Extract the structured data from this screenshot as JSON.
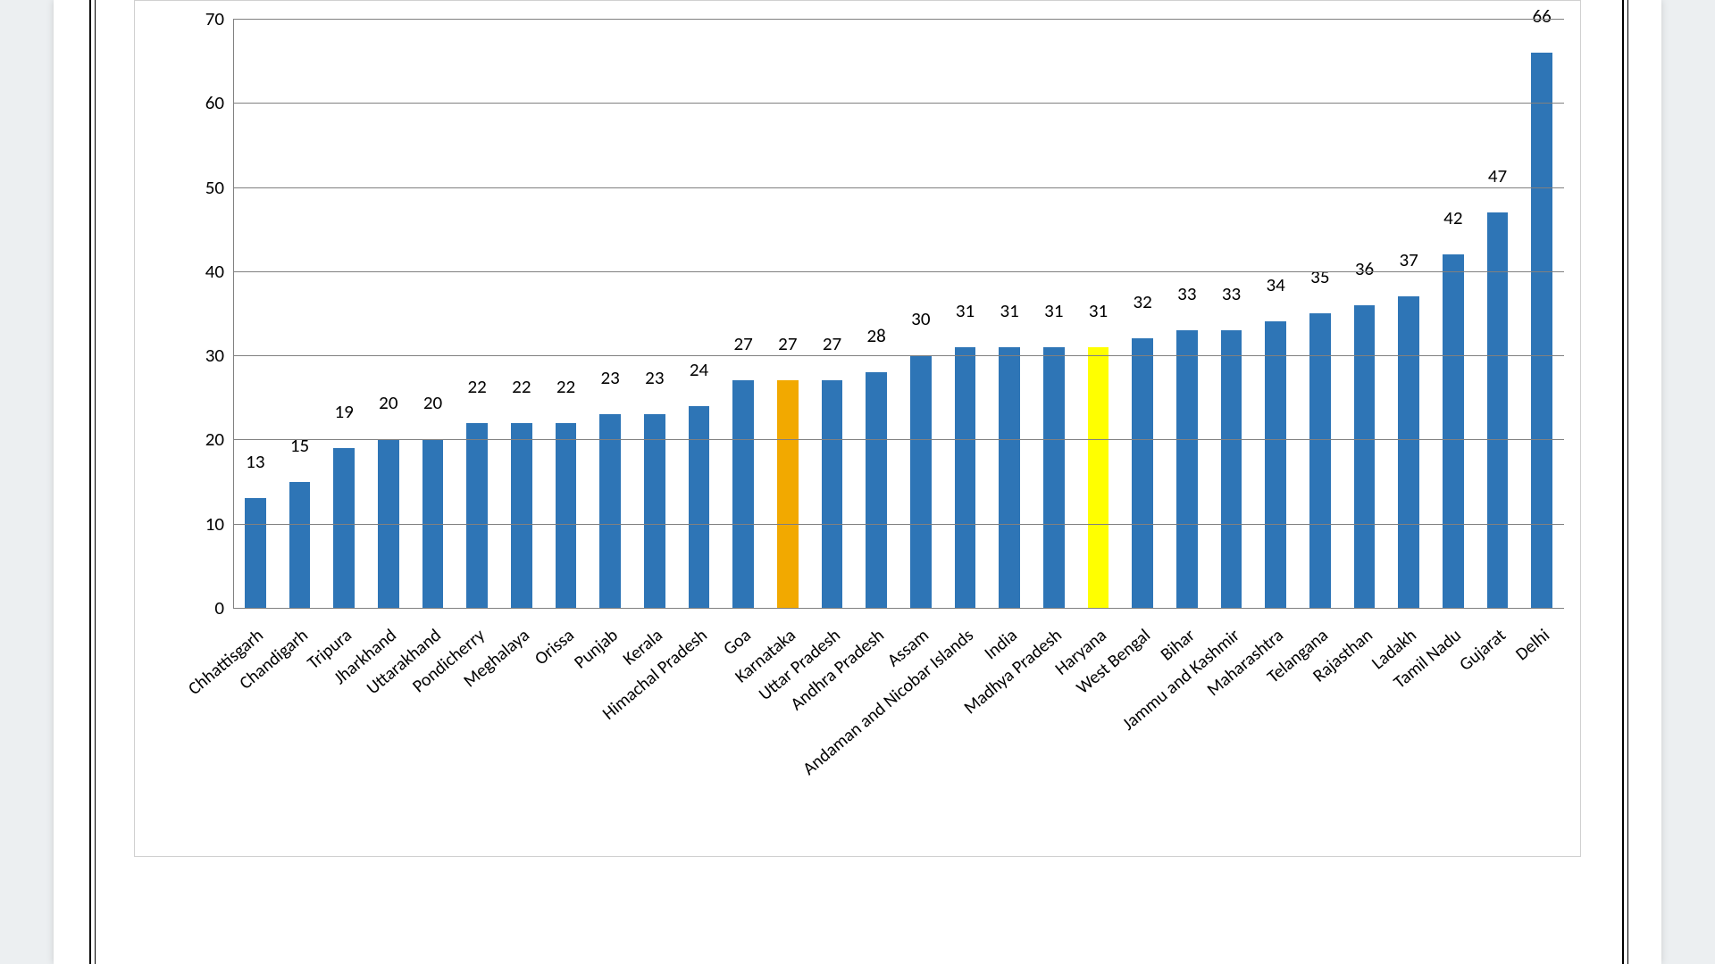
{
  "chart": {
    "type": "bar",
    "categories": [
      "Chhattisgarh",
      "Chandigarh",
      "Tripura",
      "Jharkhand",
      "Uttarakhand",
      "Pondicherry",
      "Meghalaya",
      "Orissa",
      "Punjab",
      "Kerala",
      "Himachal Pradesh",
      "Goa",
      "Karnataka",
      "Uttar Pradesh",
      "Andhra Pradesh",
      "Assam",
      "Andaman and Nicobar Islands",
      "India",
      "Madhya Pradesh",
      "Haryana",
      "West Bengal",
      "Bihar",
      "Jammu and Kashmir",
      "Maharashtra",
      "Telangana",
      "Rajasthan",
      "Ladakh",
      "Tamil Nadu",
      "Gujarat",
      "Delhi"
    ],
    "values": [
      13,
      15,
      19,
      20,
      20,
      22,
      22,
      22,
      23,
      23,
      24,
      27,
      27,
      27,
      28,
      30,
      31,
      31,
      31,
      31,
      32,
      33,
      33,
      34,
      35,
      36,
      37,
      42,
      47,
      66
    ],
    "bar_colors": [
      "#2e75b6",
      "#2e75b6",
      "#2e75b6",
      "#2e75b6",
      "#2e75b6",
      "#2e75b6",
      "#2e75b6",
      "#2e75b6",
      "#2e75b6",
      "#2e75b6",
      "#2e75b6",
      "#2e75b6",
      "#f2a900",
      "#2e75b6",
      "#2e75b6",
      "#2e75b6",
      "#2e75b6",
      "#2e75b6",
      "#2e75b6",
      "#ffff00",
      "#2e75b6",
      "#2e75b6",
      "#2e75b6",
      "#2e75b6",
      "#2e75b6",
      "#2e75b6",
      "#2e75b6",
      "#2e75b6",
      "#2e75b6",
      "#2e75b6"
    ],
    "ylim": [
      0,
      70
    ],
    "ytick_step": 10,
    "grid_color": "#808080",
    "axis_color": "#808080",
    "background_color": "#ffffff",
    "bar_width_ratio": 0.48,
    "value_label_fontsize": 21,
    "tick_label_fontsize": 21,
    "category_label_fontsize": 20,
    "category_label_rotation_deg": -40,
    "font_family": "Calibri, Arial, sans-serif"
  }
}
